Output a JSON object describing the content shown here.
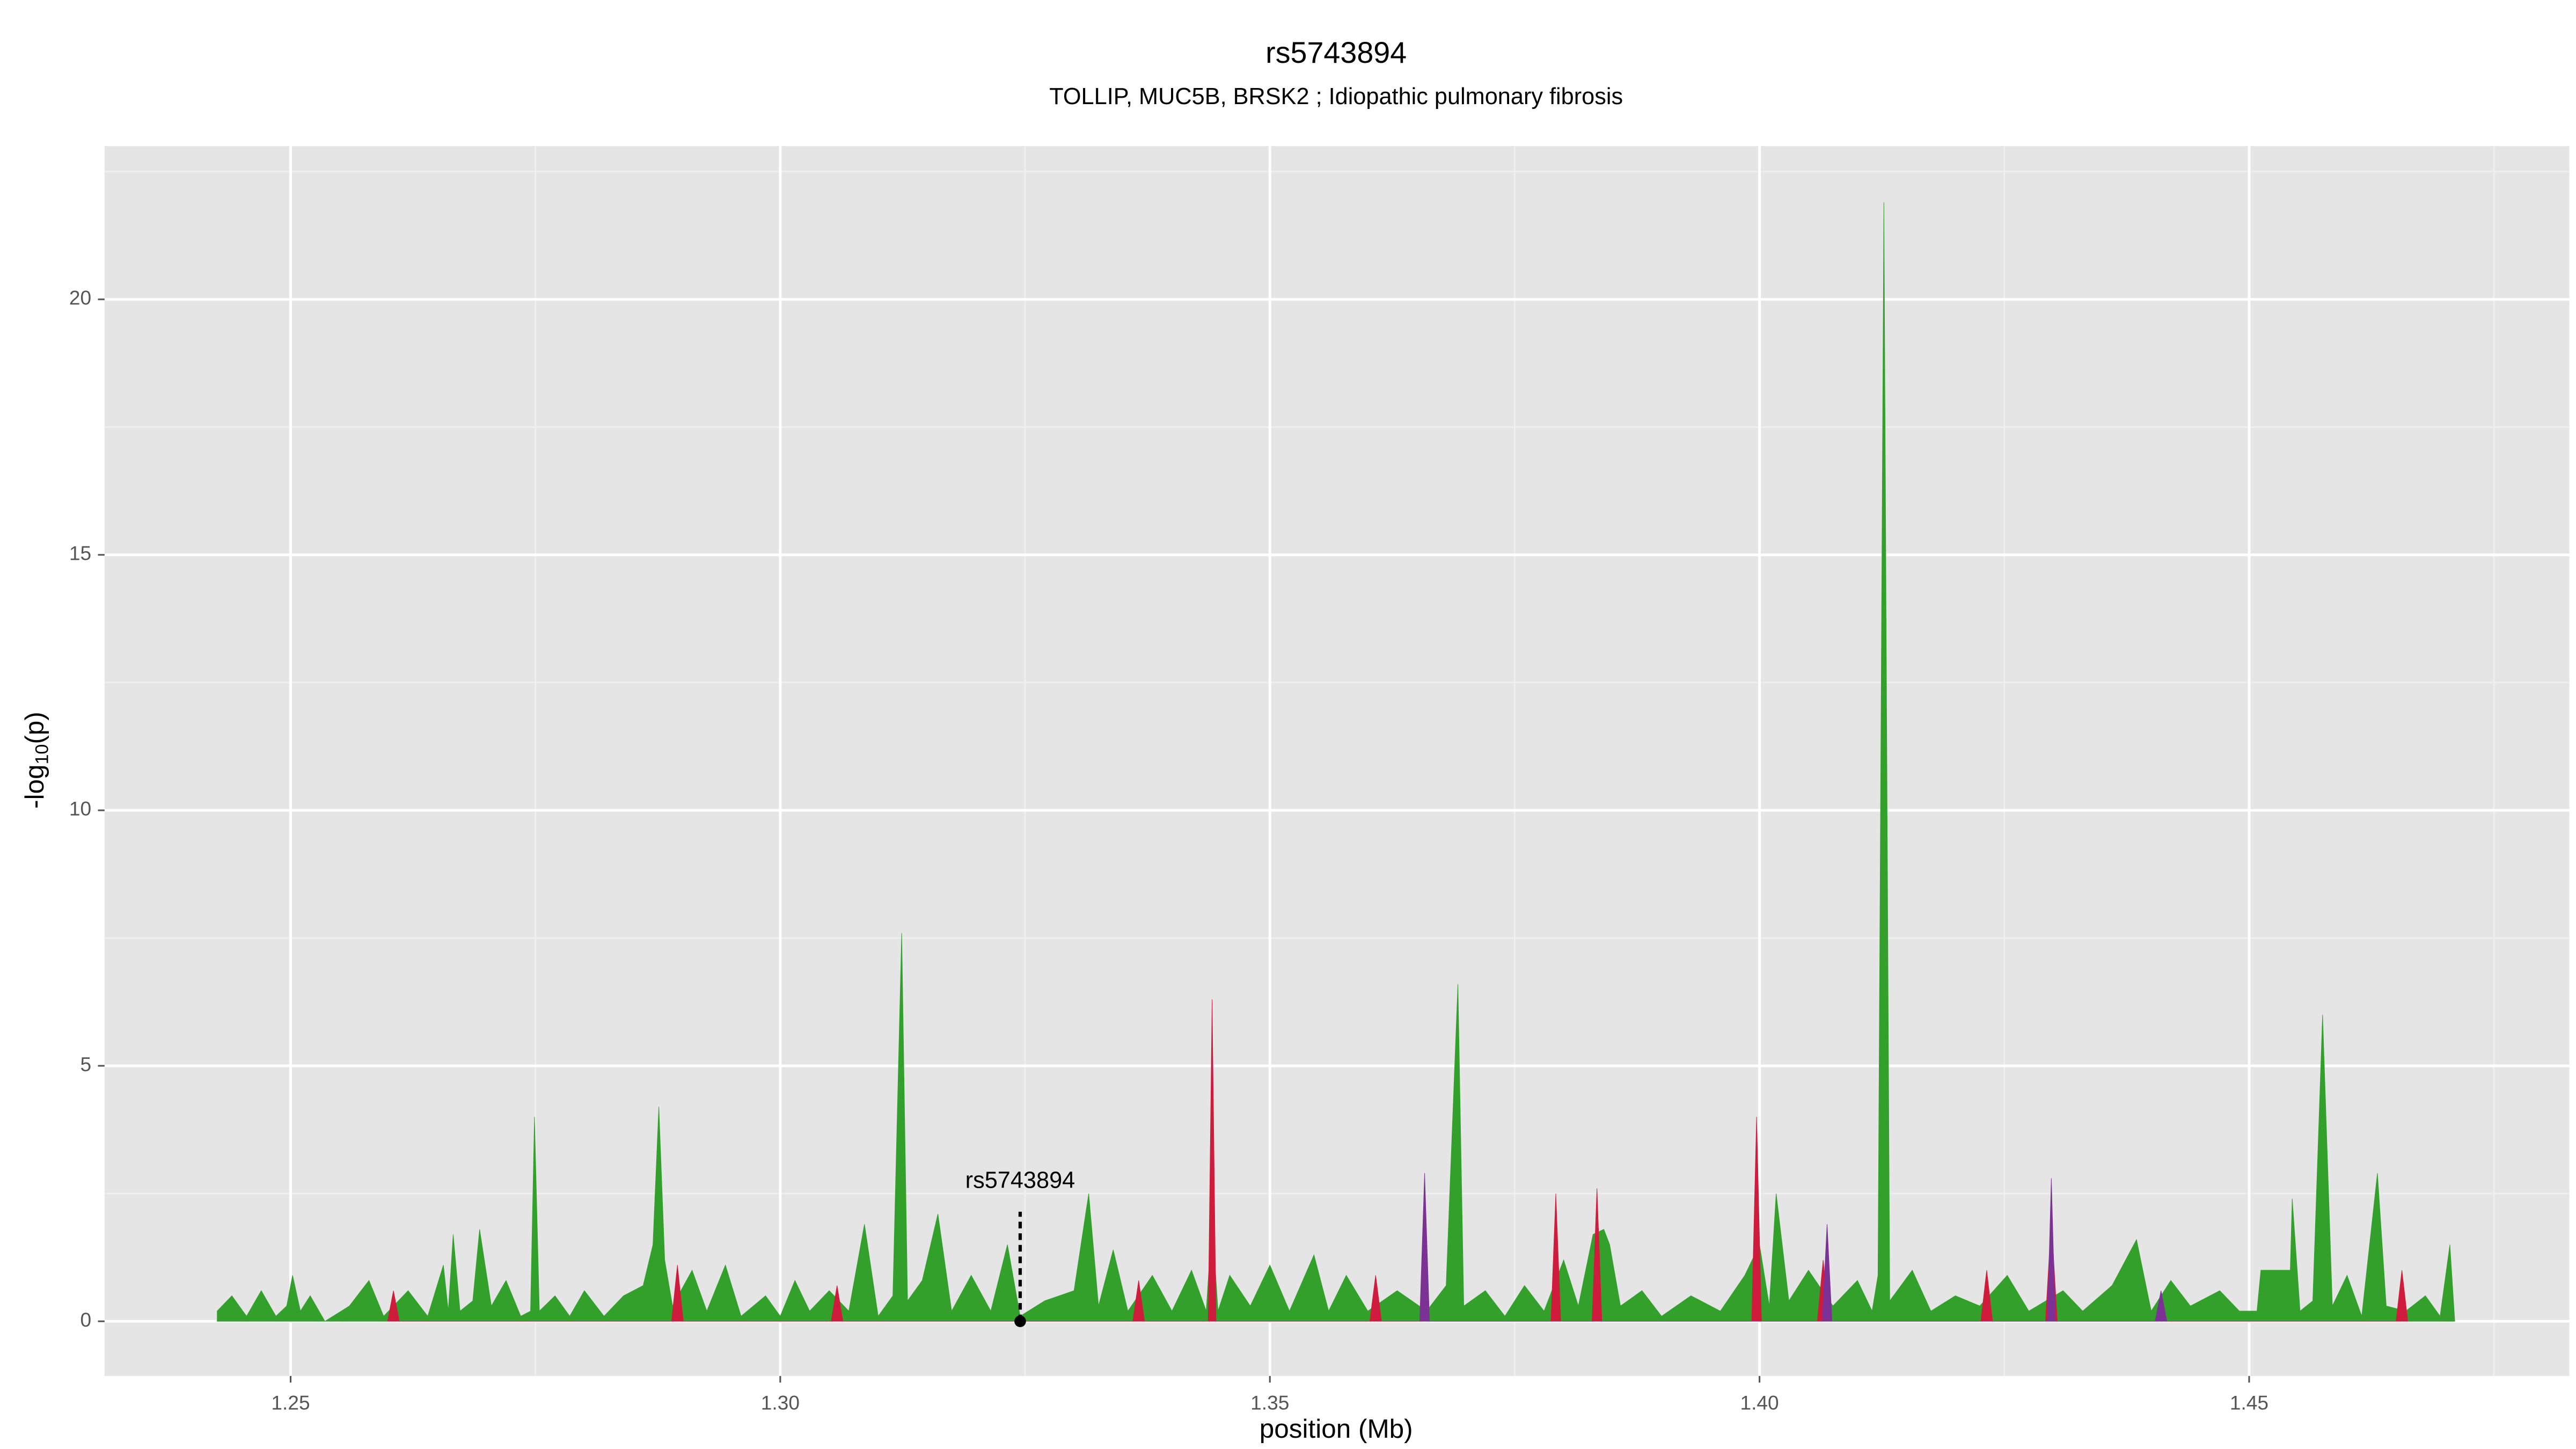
{
  "chart_data": {
    "type": "area",
    "title": "rs5743894",
    "subtitle": "TOLLIP, MUC5B, BRSK2 ; Idiopathic pulmonary fibrosis",
    "xlabel": "position (Mb)",
    "ylabel": {
      "pre": "-log",
      "sub": "10",
      "post": "(p)"
    },
    "xlim": [
      1.231,
      1.4827
    ],
    "ylim": [
      -1.07,
      23
    ],
    "xticks": [
      1.25,
      {
        "value": 1.3,
        "label": "1.30"
      },
      1.35,
      {
        "value": 1.4,
        "label": "1.40"
      },
      1.45
    ],
    "yticks": [
      0,
      5,
      10,
      15,
      20
    ],
    "xminorticks": [
      1.275,
      1.325,
      1.375,
      1.425,
      1.475
    ],
    "yminorticks": [
      2.5,
      7.5,
      12.5,
      17.5,
      22.5
    ],
    "grid": true,
    "background": "#e5e5e5",
    "series": [
      {
        "color": "#33a02c",
        "x": [
          1.2425,
          1.244,
          1.2455,
          1.247,
          1.2485,
          1.2496,
          1.2502,
          1.251,
          1.252,
          1.2535,
          1.256,
          1.258,
          1.2595,
          1.262,
          1.264,
          1.2656,
          1.2661,
          1.2666,
          1.2673,
          1.2686,
          1.2693,
          1.2705,
          1.272,
          1.2735,
          1.2745,
          1.2749,
          1.2754,
          1.277,
          1.2785,
          1.28,
          1.282,
          1.284,
          1.286,
          1.287,
          1.2876,
          1.2882,
          1.289,
          1.291,
          1.2925,
          1.2944,
          1.296,
          1.2985,
          1.3,
          1.3015,
          1.303,
          1.305,
          1.307,
          1.3086,
          1.31,
          1.3115,
          1.3124,
          1.313,
          1.3145,
          1.3161,
          1.3175,
          1.3195,
          1.3215,
          1.3232,
          1.3245,
          1.327,
          1.33,
          1.3315,
          1.3325,
          1.334,
          1.3355,
          1.338,
          1.34,
          1.342,
          1.3435,
          1.3441,
          1.3447,
          1.3459,
          1.348,
          1.35,
          1.352,
          1.3545,
          1.356,
          1.3578,
          1.36,
          1.363,
          1.366,
          1.368,
          1.3692,
          1.3698,
          1.372,
          1.374,
          1.376,
          1.378,
          1.38,
          1.3815,
          1.383,
          1.3841,
          1.3847,
          1.3858,
          1.388,
          1.39,
          1.393,
          1.396,
          1.3985,
          1.4,
          1.401,
          1.4017,
          1.403,
          1.405,
          1.4075,
          1.41,
          1.4115,
          1.4121,
          1.4127,
          1.4133,
          1.4156,
          1.4175,
          1.42,
          1.4225,
          1.4253,
          1.4275,
          1.431,
          1.433,
          1.436,
          1.4385,
          1.44,
          1.442,
          1.444,
          1.447,
          1.449,
          1.4508,
          1.4512,
          1.4542,
          1.4544,
          1.4552,
          1.4565,
          1.4575,
          1.4585,
          1.46,
          1.4615,
          1.4631,
          1.464,
          1.466,
          1.468,
          1.4695,
          1.4705,
          1.471
        ],
        "values": [
          0.2,
          0.5,
          0.1,
          0.6,
          0.1,
          0.3,
          0.9,
          0.2,
          0.5,
          0,
          0.3,
          0.8,
          0.1,
          0.6,
          0.1,
          1.1,
          0.2,
          1.7,
          0.2,
          0.4,
          1.8,
          0.3,
          0.8,
          0.1,
          0.2,
          4,
          0.2,
          0.5,
          0.1,
          0.6,
          0.1,
          0.5,
          0.7,
          1.5,
          4.2,
          1.2,
          0.3,
          1,
          0.2,
          1.1,
          0.1,
          0.5,
          0.1,
          0.8,
          0.2,
          0.6,
          0.2,
          1.9,
          0.1,
          0.5,
          7.6,
          0.4,
          0.8,
          2.1,
          0.2,
          0.9,
          0.2,
          1.5,
          0.1,
          0.4,
          0.6,
          2.5,
          0.3,
          1.4,
          0.2,
          0.9,
          0.2,
          1,
          0.2,
          2,
          0.2,
          0.9,
          0.3,
          1.1,
          0.2,
          1.3,
          0.2,
          0.9,
          0.2,
          0.6,
          0.2,
          0.7,
          6.6,
          0.3,
          0.6,
          0.1,
          0.7,
          0.2,
          1.2,
          0.3,
          1.7,
          1.8,
          1.5,
          0.3,
          0.6,
          0.1,
          0.5,
          0.2,
          0.9,
          1.5,
          0.3,
          2.5,
          0.4,
          1,
          0.3,
          0.8,
          0.2,
          0.9,
          21.9,
          0.4,
          1,
          0.2,
          0.5,
          0.3,
          0.9,
          0.2,
          0.6,
          0.2,
          0.7,
          1.6,
          0.2,
          0.8,
          0.3,
          0.6,
          0.2,
          0.2,
          1,
          1,
          2.4,
          0.2,
          0.4,
          6,
          0.3,
          0.9,
          0.1,
          2.9,
          0.3,
          0.2,
          0.5,
          0.1,
          1.5,
          0
        ]
      },
      {
        "color": "#d01c3c",
        "x": [
          1.2599,
          1.2605,
          1.2611,
          1.2889,
          1.2895,
          1.2901,
          1.3052,
          1.3058,
          1.3064,
          1.336,
          1.3366,
          1.3372,
          1.3437,
          1.3441,
          1.3445,
          1.3602,
          1.3608,
          1.3614,
          1.3787,
          1.3792,
          1.3797,
          1.3829,
          1.3834,
          1.3839,
          1.3992,
          1.3997,
          1.4002,
          1.4059,
          1.4065,
          1.4071,
          1.4226,
          1.4232,
          1.4238,
          1.4292,
          1.4298,
          1.4304,
          1.465,
          1.4656,
          1.4662
        ],
        "values": [
          0,
          0.6,
          0,
          0,
          1.1,
          0,
          0,
          0.7,
          0,
          0,
          0.8,
          0,
          0,
          6.3,
          0,
          0,
          0.9,
          0,
          0,
          2.5,
          0,
          0,
          2.6,
          0,
          0,
          4,
          0,
          0,
          1.2,
          0,
          0,
          1,
          0,
          0,
          2,
          0,
          0,
          1,
          0
        ]
      },
      {
        "color": "#7b3294",
        "x": [
          1.3653,
          1.3658,
          1.3663,
          1.4064,
          1.4069,
          1.4074,
          1.4294,
          1.4298,
          1.4302,
          1.4404,
          1.441,
          1.4416
        ],
        "values": [
          0,
          2.9,
          0,
          0,
          1.9,
          0,
          0,
          2.8,
          0,
          0,
          0.6,
          0
        ]
      }
    ],
    "annotation": {
      "label": "rs5743894",
      "x": 1.3245,
      "y": 0
    }
  }
}
